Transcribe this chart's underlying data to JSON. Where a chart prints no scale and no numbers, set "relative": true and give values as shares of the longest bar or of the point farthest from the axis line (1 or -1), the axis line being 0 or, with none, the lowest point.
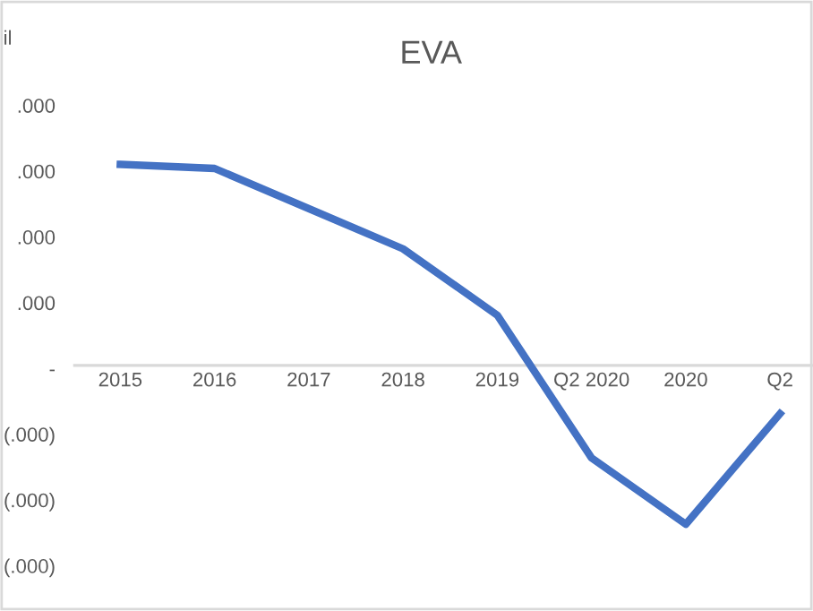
{
  "chart_data": {
    "type": "line",
    "title": "EVA",
    "relative": true,
    "categories": [
      "2015",
      "2016",
      "2017",
      "2018",
      "2019",
      "Q2 2020",
      "2020",
      "Q2"
    ],
    "series": [
      {
        "color": "#4472c4",
        "values": [
          1,
          0.98,
          0.78,
          0.58,
          0.25,
          -0.46,
          -0.79,
          -0.24
        ]
      }
    ],
    "annotations": [
      "il",
      ".000",
      ".000",
      ".000",
      ".000",
      "-",
      "(.000)",
      "(.000)",
      "(.000)"
    ],
    "legend": false,
    "marker": "none",
    "line_style": "solid"
  }
}
